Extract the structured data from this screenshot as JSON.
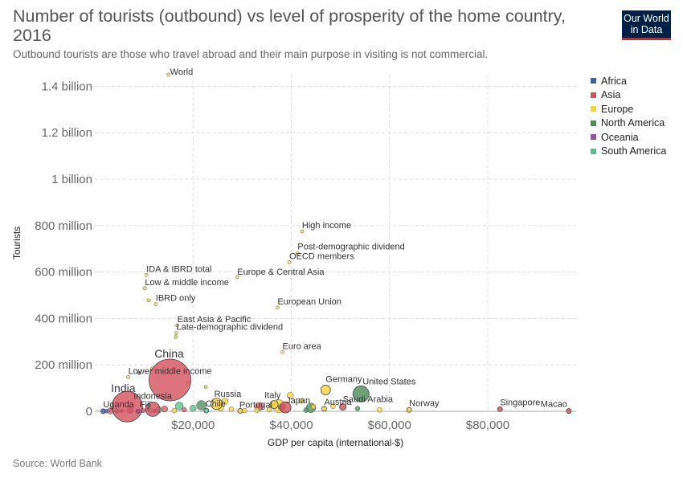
{
  "header": {
    "title": "Number of tourists (outbound) vs level of prosperity of the home country, 2016",
    "subtitle": "Outbound tourists are those who travel abroad and their main purpose in visiting is not commercial.",
    "logo_line1": "Our World",
    "logo_line2": "in Data",
    "source": "Source: World Bank"
  },
  "legend": [
    {
      "name": "Africa",
      "color": "#3b5fb5"
    },
    {
      "name": "Asia",
      "color": "#d4505d"
    },
    {
      "name": "Europe",
      "color": "#f6d23a"
    },
    {
      "name": "North America",
      "color": "#4a8b56"
    },
    {
      "name": "Oceania",
      "color": "#a347b3"
    },
    {
      "name": "South America",
      "color": "#4cc18a"
    }
  ],
  "chart_data": {
    "type": "scatter",
    "xlabel": "GDP per capita (international-$)",
    "ylabel": "Tourists",
    "xlim": [
      0,
      98000
    ],
    "ylim": [
      0,
      1450000000
    ],
    "x_ticks": [
      {
        "value": 20000,
        "label": "$20,000"
      },
      {
        "value": 40000,
        "label": "$40,000"
      },
      {
        "value": 60000,
        "label": "$60,000"
      },
      {
        "value": 80000,
        "label": "$80,000"
      }
    ],
    "y_ticks": [
      {
        "value": 0,
        "label": "0"
      },
      {
        "value": 200000000,
        "label": "200 million"
      },
      {
        "value": 400000000,
        "label": "400 million"
      },
      {
        "value": 600000000,
        "label": "600 million"
      },
      {
        "value": 800000000,
        "label": "800 million"
      },
      {
        "value": 1000000000,
        "label": "1 billion"
      },
      {
        "value": 1200000000,
        "label": "1.2 billion"
      },
      {
        "value": 1400000000,
        "label": "1.4 billion"
      }
    ],
    "grid": true,
    "legend_position": "right",
    "points": [
      {
        "label": "World",
        "x": 15000,
        "y": 1450000000,
        "group": "aggregate"
      },
      {
        "label": "High income",
        "x": 42200,
        "y": 775000000,
        "group": "aggregate"
      },
      {
        "label": "Post-demographic dividend",
        "x": 41300,
        "y": 680000000,
        "group": "aggregate"
      },
      {
        "label": "OECD members",
        "x": 39600,
        "y": 642000000,
        "group": "aggregate"
      },
      {
        "label": "IDA & IBRD total",
        "x": 10500,
        "y": 587000000,
        "group": "aggregate"
      },
      {
        "label": "Europe & Central Asia",
        "x": 29000,
        "y": 578000000,
        "group": "aggregate"
      },
      {
        "label": "Low & middle income",
        "x": 10200,
        "y": 530000000,
        "group": "aggregate"
      },
      {
        "label": "IBRD only",
        "x": 12400,
        "y": 462000000,
        "group": "aggregate"
      },
      {
        "label": "European Union",
        "x": 37200,
        "y": 447000000,
        "group": "aggregate"
      },
      {
        "label": "East Asia & Pacific",
        "x": 16800,
        "y": 370000000,
        "group": "aggregate"
      },
      {
        "label": "Late-demographic dividend",
        "x": 16600,
        "y": 337000000,
        "group": "aggregate"
      },
      {
        "label": "Euro area",
        "x": 38200,
        "y": 255000000,
        "group": "aggregate"
      },
      {
        "label": "Lower middle income",
        "x": 6800,
        "y": 147000000,
        "group": "aggregate"
      },
      {
        "label": "China",
        "x": 15300,
        "y": 135000000,
        "group": "Asia",
        "r": 26
      },
      {
        "label": "India",
        "x": 6600,
        "y": 20000000,
        "group": "Asia",
        "r": 19
      },
      {
        "label": "Indonesia",
        "x": 11800,
        "y": 9000000,
        "group": "Asia",
        "r": 9
      },
      {
        "label": "Germany",
        "x": 47000,
        "y": 92000000,
        "group": "Europe",
        "r": 6
      },
      {
        "label": "United States",
        "x": 54200,
        "y": 75000000,
        "group": "North America",
        "r": 10
      },
      {
        "label": "Russia",
        "x": 24800,
        "y": 32000000,
        "group": "Europe",
        "r": 7
      },
      {
        "label": "Italy",
        "x": 36500,
        "y": 29000000,
        "group": "Europe",
        "r": 5
      },
      {
        "label": "Japan",
        "x": 38800,
        "y": 17000000,
        "group": "Asia",
        "r": 7
      },
      {
        "label": "Austria",
        "x": 46700,
        "y": 11000000,
        "group": "Europe",
        "r": 3
      },
      {
        "label": "Saudi Arabia",
        "x": 50500,
        "y": 19000000,
        "group": "Asia",
        "r": 4
      },
      {
        "label": "Portugal",
        "x": 29600,
        "y": 2000000,
        "group": "Europe",
        "r": 3
      },
      {
        "label": "Chile",
        "x": 22700,
        "y": 3000000,
        "group": "South America",
        "r": 3
      },
      {
        "label": "Fiji",
        "x": 8800,
        "y": 100000,
        "group": "Oceania",
        "r": 2.5
      },
      {
        "label": "Uganda",
        "x": 1700,
        "y": 300000,
        "group": "Africa",
        "r": 3
      },
      {
        "label": "Norway",
        "x": 64000,
        "y": 6000000,
        "group": "Europe",
        "r": 3
      },
      {
        "label": "Singapore",
        "x": 82500,
        "y": 9000000,
        "group": "Asia",
        "r": 3
      },
      {
        "label": "Macao",
        "x": 96500,
        "y": 1000000,
        "group": "Asia",
        "r": 3
      }
    ],
    "unlabeled_points": [
      {
        "x": 21700,
        "y": 26000000,
        "group": "North America",
        "r": 6
      },
      {
        "x": 17200,
        "y": 23000000,
        "group": "South America",
        "r": 5
      },
      {
        "x": 33500,
        "y": 21000000,
        "group": "Asia",
        "r": 5
      },
      {
        "x": 44000,
        "y": 15000000,
        "group": "North America",
        "r": 6
      },
      {
        "x": 37500,
        "y": 22000000,
        "group": "Europe",
        "r": 8
      },
      {
        "x": 39800,
        "y": 68000000,
        "group": "Europe",
        "r": 4
      },
      {
        "x": 42000,
        "y": 45000000,
        "group": "Europe",
        "r": 3
      },
      {
        "x": 26500,
        "y": 43000000,
        "group": "Europe",
        "r": 4
      },
      {
        "x": 44500,
        "y": 20000000,
        "group": "Europe",
        "r": 3
      },
      {
        "x": 48500,
        "y": 22000000,
        "group": "Europe",
        "r": 3
      },
      {
        "x": 38000,
        "y": 17000000,
        "group": "Asia",
        "r": 4
      },
      {
        "x": 25600,
        "y": 16000000,
        "group": "Europe",
        "r": 4
      },
      {
        "x": 27800,
        "y": 9000000,
        "group": "Europe",
        "r": 3
      },
      {
        "x": 20000,
        "y": 13000000,
        "group": "South America",
        "r": 4
      },
      {
        "x": 18200,
        "y": 7000000,
        "group": "Asia",
        "r": 3
      },
      {
        "x": 14200,
        "y": 10000000,
        "group": "Asia",
        "r": 4
      },
      {
        "x": 13000,
        "y": 6000000,
        "group": "South America",
        "r": 4
      },
      {
        "x": 11300,
        "y": 5000000,
        "group": "South America",
        "r": 3
      },
      {
        "x": 9800,
        "y": 4000000,
        "group": "Asia",
        "r": 3
      },
      {
        "x": 7200,
        "y": 5000000,
        "group": "Asia",
        "r": 4
      },
      {
        "x": 4500,
        "y": 2000000,
        "group": "Africa",
        "r": 3
      },
      {
        "x": 3200,
        "y": 2000000,
        "group": "Asia",
        "r": 4
      },
      {
        "x": 2400,
        "y": 1000000,
        "group": "Africa",
        "r": 2.5
      },
      {
        "x": 5500,
        "y": 1000000,
        "group": "Oceania",
        "r": 2.5
      },
      {
        "x": 12200,
        "y": 2000000,
        "group": "Oceania",
        "r": 2.5
      },
      {
        "x": 16200,
        "y": 3000000,
        "group": "Europe",
        "r": 3
      },
      {
        "x": 30500,
        "y": 3000000,
        "group": "Europe",
        "r": 3
      },
      {
        "x": 33000,
        "y": 5000000,
        "group": "Europe",
        "r": 3
      },
      {
        "x": 35500,
        "y": 7000000,
        "group": "Europe",
        "r": 3
      },
      {
        "x": 43000,
        "y": 5000000,
        "group": "North America",
        "r": 3
      },
      {
        "x": 53500,
        "y": 12000000,
        "group": "North America",
        "r": 3
      },
      {
        "x": 58000,
        "y": 6000000,
        "group": "Europe",
        "r": 3
      },
      {
        "x": 22600,
        "y": 105000000,
        "group": "Europe",
        "r": 2
      },
      {
        "x": 9000,
        "y": 165000000,
        "group": "Asia",
        "r": 2
      },
      {
        "x": 11700,
        "y": 185000000,
        "group": "Europe",
        "r": 2
      },
      {
        "x": 19000,
        "y": 125000000,
        "group": "Europe",
        "r": 2
      },
      {
        "x": 11000,
        "y": 478000000,
        "group": "Europe",
        "r": 2
      },
      {
        "x": 16500,
        "y": 320000000,
        "group": "Europe",
        "r": 2
      }
    ]
  }
}
